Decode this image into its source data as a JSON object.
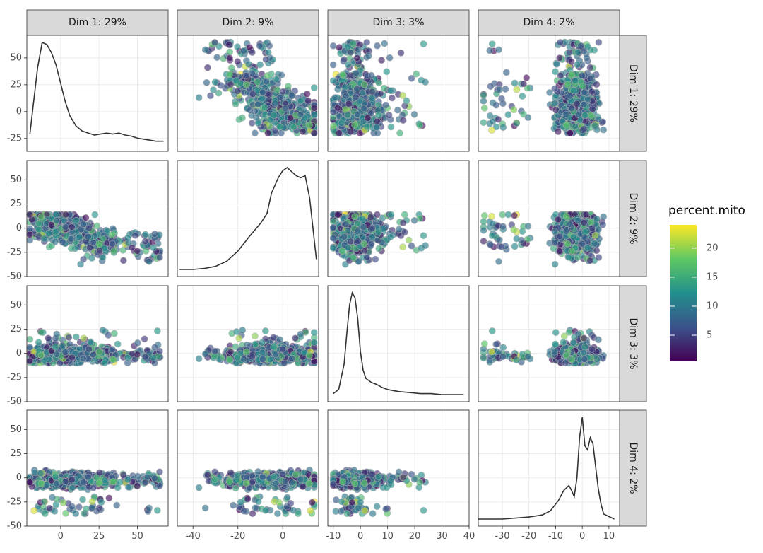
{
  "chart_data": {
    "type": "scatter",
    "layout": "scatter-plot-matrix",
    "panel_labels": [
      "Dim 1: 29%",
      "Dim 2: 9%",
      "Dim 3: 3%",
      "Dim 4: 2%"
    ],
    "x_axis_ticks": [
      [
        0,
        25,
        50
      ],
      [
        -40,
        -20,
        0
      ],
      [
        -10,
        0,
        10,
        20,
        30,
        40
      ],
      [
        -40,
        -30,
        -20,
        -10,
        0,
        10
      ]
    ],
    "x_axis_tick_labels": [
      [
        "0",
        "25",
        "50"
      ],
      [
        "-40",
        "-20",
        "0"
      ],
      [
        "-10",
        "0",
        "10",
        "20",
        "30",
        "40"
      ],
      [
        "-40",
        "-30",
        "-20",
        "-10",
        "0",
        "10"
      ]
    ],
    "x_ranges": [
      [
        -22,
        70
      ],
      [
        -47,
        16
      ],
      [
        -12,
        40
      ],
      [
        -39,
        14
      ]
    ],
    "y_axis_ticks": [
      [
        -25,
        0,
        25,
        50
      ],
      [
        -50,
        -25,
        0,
        25,
        50
      ],
      [
        -50,
        -25,
        0,
        25,
        50
      ],
      [
        -50,
        -25,
        0,
        25,
        50
      ]
    ],
    "y_axis_tick_labels": [
      [
        "-25",
        "0",
        "25",
        "50"
      ],
      [
        "-50",
        "-25",
        "0",
        "25",
        "50"
      ],
      [
        "-50",
        "-25",
        "0",
        "25",
        "50"
      ],
      [
        "-50",
        "-25",
        "0",
        "25",
        "50"
      ]
    ],
    "y_ranges": [
      [
        -37,
        71
      ],
      [
        -50,
        70
      ],
      [
        -50,
        70
      ],
      [
        -50,
        70
      ]
    ],
    "density_curves": [
      {
        "dim": 1,
        "x": [
          -20,
          -15,
          -12,
          -9,
          -6,
          -3,
          0,
          3,
          6,
          10,
          14,
          18,
          22,
          26,
          30,
          34,
          38,
          42,
          46,
          50,
          54,
          58,
          62,
          67
        ],
        "density": [
          0.1,
          0.75,
          1.0,
          0.98,
          0.9,
          0.78,
          0.6,
          0.42,
          0.28,
          0.18,
          0.13,
          0.11,
          0.09,
          0.1,
          0.11,
          0.1,
          0.11,
          0.09,
          0.08,
          0.06,
          0.05,
          0.04,
          0.03,
          0.03
        ]
      },
      {
        "dim": 2,
        "x": [
          -46,
          -40,
          -35,
          -30,
          -25,
          -20,
          -15,
          -10,
          -7,
          -5,
          -2,
          0,
          2,
          4,
          6,
          8,
          10,
          12,
          15
        ],
        "density": [
          0.0,
          0.0,
          0.01,
          0.03,
          0.08,
          0.18,
          0.32,
          0.45,
          0.55,
          0.75,
          0.9,
          0.97,
          1.0,
          0.96,
          0.92,
          0.9,
          0.92,
          0.7,
          0.1
        ]
      },
      {
        "dim": 3,
        "x": [
          -10,
          -8,
          -6,
          -5,
          -4,
          -3,
          -2,
          -1,
          0,
          1,
          2,
          4,
          6,
          8,
          10,
          14,
          18,
          22,
          26,
          30,
          34,
          38
        ],
        "density": [
          0.01,
          0.05,
          0.3,
          0.6,
          0.88,
          1.0,
          0.95,
          0.75,
          0.42,
          0.24,
          0.16,
          0.12,
          0.1,
          0.07,
          0.05,
          0.03,
          0.02,
          0.01,
          0.01,
          0.0,
          0.0,
          0.0
        ]
      },
      {
        "dim": 4,
        "x": [
          -39,
          -30,
          -25,
          -20,
          -15,
          -12,
          -9,
          -7,
          -5,
          -4,
          -3,
          -2,
          -1,
          0,
          1,
          2,
          3,
          4,
          5,
          6,
          7,
          8,
          12
        ],
        "density": [
          0.0,
          0.0,
          0.01,
          0.02,
          0.04,
          0.08,
          0.18,
          0.28,
          0.33,
          0.28,
          0.22,
          0.4,
          0.8,
          1.0,
          0.72,
          0.68,
          0.8,
          0.74,
          0.52,
          0.3,
          0.15,
          0.05,
          0.0
        ]
      }
    ],
    "color_variable": "percent.mito",
    "legend": {
      "title": "percent.mito",
      "placement": "right",
      "ticks": [
        5,
        10,
        15,
        20
      ],
      "tick_labels": [
        "5",
        "10",
        "15",
        "20"
      ],
      "range": [
        0.5,
        24
      ],
      "palette": [
        "#440154",
        "#3b528b",
        "#21908c",
        "#5dc863",
        "#fde725"
      ]
    },
    "point_style": {
      "size": "medium",
      "alpha": 0.65,
      "stroke": "#b3b3b3"
    },
    "panel_background": "#ffffff",
    "grid": true,
    "grid_color": "#ebebeb",
    "strip_fill": "#d9d9d9",
    "density_color": "#333333"
  }
}
